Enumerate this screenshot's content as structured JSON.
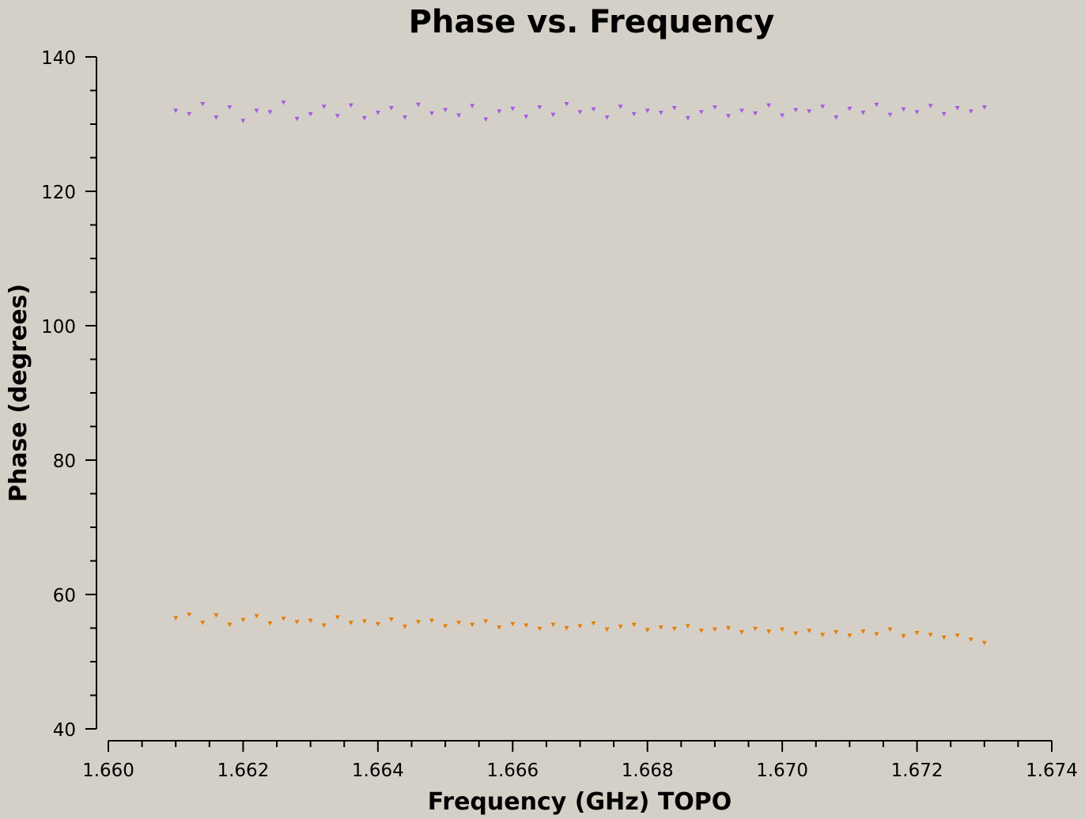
{
  "chart_data": {
    "type": "scatter",
    "title": "Phase vs. Frequency",
    "xlabel": "Frequency (GHz) TOPO",
    "ylabel": "Phase (degrees)",
    "xlim": [
      1.66,
      1.674
    ],
    "ylim": [
      40,
      140
    ],
    "x_ticks": [
      "1.660",
      "1.662",
      "1.664",
      "1.666",
      "1.668",
      "1.670",
      "1.672",
      "1.674"
    ],
    "y_ticks": [
      "40",
      "60",
      "80",
      "100",
      "120",
      "140"
    ],
    "marker": "downward-triangle",
    "grid": false,
    "legend": "none",
    "series": [
      {
        "color": "#a55be0",
        "x": [
          1.661,
          1.6612,
          1.6614,
          1.6616,
          1.6618,
          1.662,
          1.6622,
          1.6624,
          1.6626,
          1.6628,
          1.663,
          1.6632,
          1.6634,
          1.6636,
          1.6638,
          1.664,
          1.6642,
          1.6644,
          1.6646,
          1.6648,
          1.665,
          1.6652,
          1.6654,
          1.6656,
          1.6658,
          1.666,
          1.6662,
          1.6664,
          1.6666,
          1.6668,
          1.667,
          1.6672,
          1.6674,
          1.6676,
          1.6678,
          1.668,
          1.6682,
          1.6684,
          1.6686,
          1.6688,
          1.669,
          1.6692,
          1.6694,
          1.6696,
          1.6698,
          1.67,
          1.6702,
          1.6704,
          1.6706,
          1.6708,
          1.671,
          1.6712,
          1.6714,
          1.6716,
          1.6718,
          1.672,
          1.6722,
          1.6724,
          1.6726,
          1.6728,
          1.673
        ],
        "y": [
          132.0,
          131.5,
          133.0,
          131.0,
          132.5,
          130.5,
          132.0,
          131.8,
          133.2,
          130.8,
          131.5,
          132.6,
          131.2,
          132.8,
          130.9,
          131.7,
          132.4,
          131.0,
          132.9,
          131.6,
          132.1,
          131.3,
          132.7,
          130.7,
          131.9,
          132.3,
          131.1,
          132.5,
          131.4,
          133.0,
          131.8,
          132.2,
          131.0,
          132.6,
          131.5,
          132.0,
          131.7,
          132.4,
          130.9,
          131.8,
          132.5,
          131.2,
          132.0,
          131.6,
          132.8,
          131.3,
          132.1,
          131.9,
          132.6,
          131.0,
          132.3,
          131.7,
          132.9,
          131.4,
          132.2,
          131.8,
          132.7,
          131.5,
          132.4,
          131.9,
          132.5
        ]
      },
      {
        "color": "#e67c00",
        "x": [
          1.661,
          1.6612,
          1.6614,
          1.6616,
          1.6618,
          1.662,
          1.6622,
          1.6624,
          1.6626,
          1.6628,
          1.663,
          1.6632,
          1.6634,
          1.6636,
          1.6638,
          1.664,
          1.6642,
          1.6644,
          1.6646,
          1.6648,
          1.665,
          1.6652,
          1.6654,
          1.6656,
          1.6658,
          1.666,
          1.6662,
          1.6664,
          1.6666,
          1.6668,
          1.667,
          1.6672,
          1.6674,
          1.6676,
          1.6678,
          1.668,
          1.6682,
          1.6684,
          1.6686,
          1.6688,
          1.669,
          1.6692,
          1.6694,
          1.6696,
          1.6698,
          1.67,
          1.6702,
          1.6704,
          1.6706,
          1.6708,
          1.671,
          1.6712,
          1.6714,
          1.6716,
          1.6718,
          1.672,
          1.6722,
          1.6724,
          1.6726,
          1.6728,
          1.673
        ],
        "y": [
          56.5,
          57.0,
          55.8,
          56.9,
          55.5,
          56.2,
          56.8,
          55.7,
          56.4,
          55.9,
          56.1,
          55.4,
          56.6,
          55.8,
          56.0,
          55.6,
          56.3,
          55.2,
          55.9,
          56.1,
          55.3,
          55.8,
          55.5,
          56.0,
          55.1,
          55.6,
          55.4,
          54.9,
          55.5,
          55.0,
          55.3,
          55.7,
          54.8,
          55.2,
          55.5,
          54.7,
          55.1,
          54.9,
          55.3,
          54.6,
          54.8,
          55.0,
          54.4,
          54.9,
          54.5,
          54.8,
          54.2,
          54.6,
          54.0,
          54.4,
          53.9,
          54.5,
          54.1,
          54.8,
          53.8,
          54.3,
          54.0,
          53.6,
          53.9,
          53.3,
          52.8
        ]
      }
    ]
  }
}
